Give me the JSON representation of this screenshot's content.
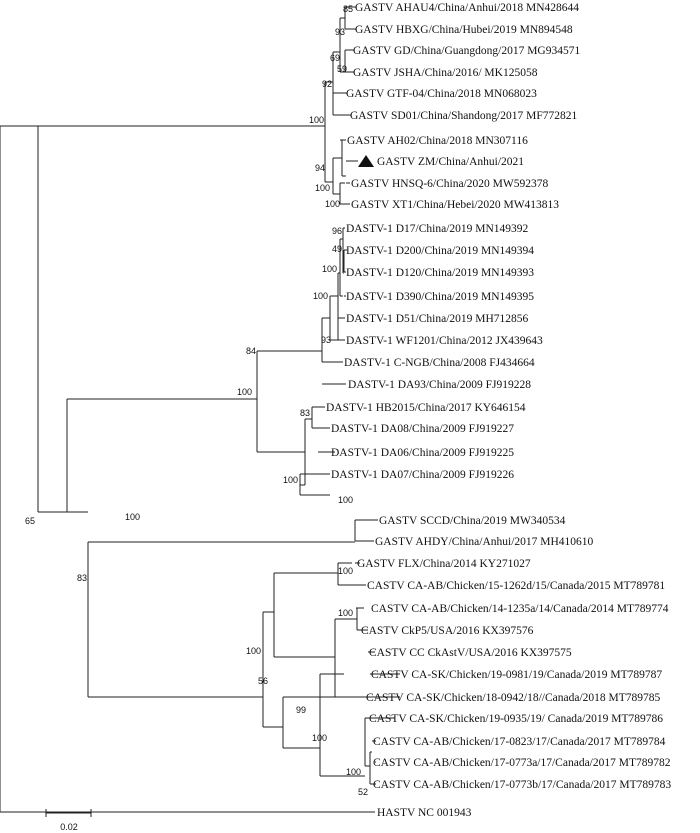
{
  "tree": {
    "taxa": [
      "GASTV AHAU4/China/Anhui/2018 MN428644",
      "GASTV HBXG/China/Hubei/2019 MN894548",
      "GASTV GD/China/Guangdong/2017 MG934571",
      "GASTV JSHA/China/2016/ MK125058",
      "GASTV GTF-04/China/2018 MN068023",
      "GASTV SD01/China/Shandong/2017 MF772821",
      "GASTV AH02/China/2018 MN307116",
      "GASTV ZM/China/Anhui/2021",
      "GASTV HNSQ-6/China/2020 MW592378",
      "GASTV XT1/China/Hebei/2020 MW413813",
      "DASTV-1 D17/China/2019 MN149392",
      "DASTV-1 D200/China/2019 MN149394",
      "DASTV-1 D120/China/2019 MN149393",
      "DASTV-1 D390/China/2019 MN149395",
      "DASTV-1 D51/China/2019 MH712856",
      "DASTV-1 WF1201/China/2012 JX439643",
      "DASTV-1 C-NGB/China/2008 FJ434664",
      "DASTV-1 DA93/China/2009 FJ919228",
      "DASTV-1 HB2015/China/2017 KY646154",
      "DASTV-1 DA08/China/2009 FJ919227",
      "DASTV-1 DA06/China/2009 FJ919225",
      "DASTV-1 DA07/China/2009 FJ919226",
      "GASTV SCCD/China/2019 MW340534",
      "GASTV AHDY/China/Anhui/2017 MH410610",
      "GASTV FLX/China/2014 KY271027",
      "CASTV CA-AB/Chicken/15-1262d/15/Canada/2015 MT789781",
      "CASTV CA-AB/Chicken/14-1235a/14/Canada/2014 MT789774",
      "CASTV CkP5/USA/2016 KX397576",
      "CASTV CC CkAstV/USA/2016 KX397575",
      "CASTV CA-SK/Chicken/19-0981/19/Canada/2019 MT789787",
      "CASTV CA-SK/Chicken/18-0942/18//Canada/2018 MT789785",
      "CASTV CA-SK/Chicken/19-0935/19/ Canada/2019 MT789786",
      "CASTV CA-AB/Chicken/17-0823/17/Canada/2017 MT789784",
      "CASTV CA-AB/Chicken/17-0773a/17/Canada/2017 MT789782",
      "CASTV CA-AB/Chicken/17-0773b/17/Canada/2017 MT789783",
      "HASTV NC 001943"
    ],
    "marked_taxon_index": 7,
    "marker_icon": "black-triangle-icon",
    "bootstrap": [
      "85",
      "93",
      "69",
      "59",
      "92",
      "100",
      "94",
      "100",
      "100",
      "96",
      "49",
      "100",
      "100",
      "93",
      "84",
      "100",
      "83",
      "100",
      "65",
      "100",
      "100",
      "83",
      "100",
      "100",
      "100",
      "56",
      "99",
      "100",
      "100",
      "52"
    ],
    "scale_label": "0.02",
    "line_color": "#222222",
    "text_color": "#111111"
  }
}
